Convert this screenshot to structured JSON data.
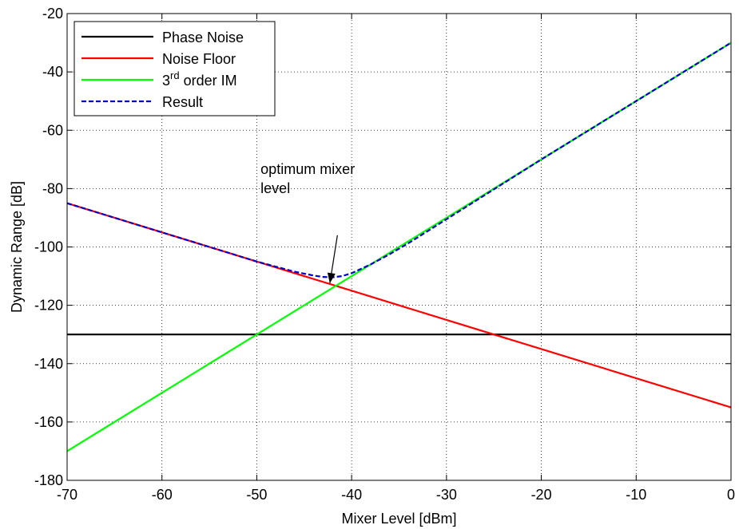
{
  "chart_data": {
    "type": "line",
    "title": "",
    "xlabel": "Mixer Level [dBm]",
    "ylabel": "Dynamic Range [dB]",
    "xlim": [
      -70,
      0
    ],
    "ylim": [
      -180,
      -20
    ],
    "xticks": [
      -70,
      -60,
      -50,
      -40,
      -30,
      -20,
      -10,
      0
    ],
    "yticks": [
      -180,
      -160,
      -140,
      -120,
      -100,
      -80,
      -60,
      -40,
      -20
    ],
    "grid": true,
    "legend_position": "top-left",
    "series": [
      {
        "name": "Phase Noise",
        "color": "#000000",
        "dash": "solid",
        "x": [
          -70,
          0
        ],
        "y": [
          -130,
          -130
        ]
      },
      {
        "name": "Noise Floor",
        "color": "#ff0000",
        "dash": "solid",
        "x": [
          -70,
          -60,
          -50,
          -40,
          -30,
          -20,
          -10,
          0
        ],
        "y": [
          -85,
          -95,
          -105,
          -115,
          -125,
          -135,
          -145,
          -155
        ]
      },
      {
        "name": "3rd order IM",
        "name_parts": {
          "base": "3",
          "sup": "rd",
          "rest": " order IM"
        },
        "color": "#00ff00",
        "dash": "solid",
        "x": [
          -70,
          -60,
          -50,
          -40,
          -30,
          -20,
          -10,
          0
        ],
        "y": [
          -170,
          -150,
          -130,
          -110,
          -90,
          -70,
          -50,
          -30
        ]
      },
      {
        "name": "Result",
        "color": "#0000cc",
        "dash": "dashed",
        "x": [
          -70,
          -60,
          -50,
          -46,
          -44,
          -43,
          -42,
          -41,
          -40,
          -39,
          -38,
          -36,
          -34,
          -30,
          -20,
          -10,
          0
        ],
        "y": [
          -85,
          -95,
          -105,
          -108.5,
          -109.8,
          -110.3,
          -110.4,
          -110,
          -109,
          -107.5,
          -106,
          -102.5,
          -98.7,
          -90.5,
          -70,
          -50,
          -30
        ]
      }
    ],
    "annotations": [
      {
        "text_lines": [
          "optimum mixer",
          "level"
        ],
        "text_x": -49.6,
        "text_y": -75,
        "arrow_from": [
          -41.5,
          -96
        ],
        "arrow_to": [
          -42.3,
          -112.5
        ]
      }
    ]
  }
}
